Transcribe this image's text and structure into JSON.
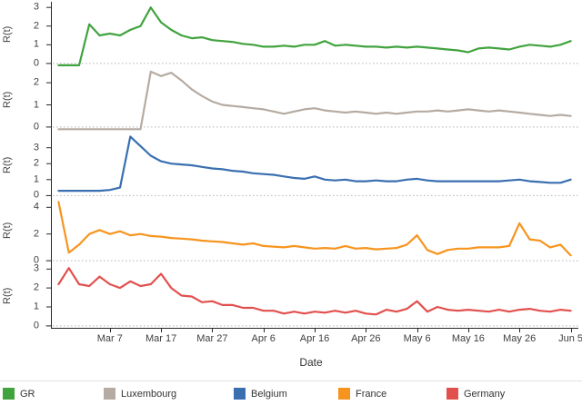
{
  "chart_data": {
    "type": "line",
    "title": "",
    "xlabel": "Date",
    "ylabel": "R(t)",
    "layout": "5 stacked panels sharing x axis, legend at bottom",
    "grid": "dotted horizontal line at y=0 in each panel",
    "x_description": "day index, 0 = Feb 26, step = 2 days, 100 = Jun 5",
    "x": [
      0,
      2,
      4,
      6,
      8,
      10,
      12,
      14,
      16,
      18,
      20,
      22,
      24,
      26,
      28,
      30,
      32,
      34,
      36,
      38,
      40,
      42,
      44,
      46,
      48,
      50,
      52,
      54,
      56,
      58,
      60,
      62,
      64,
      66,
      68,
      70,
      72,
      74,
      76,
      78,
      80,
      82,
      84,
      86,
      88,
      90,
      92,
      94,
      96,
      98,
      100
    ],
    "xticks": [
      {
        "pos": 10,
        "label": "Mar 7"
      },
      {
        "pos": 20,
        "label": "Mar 17"
      },
      {
        "pos": 30,
        "label": "Mar 27"
      },
      {
        "pos": 40,
        "label": "Apr 6"
      },
      {
        "pos": 50,
        "label": "Apr 16"
      },
      {
        "pos": 60,
        "label": "Apr 26"
      },
      {
        "pos": 70,
        "label": "May 6"
      },
      {
        "pos": 80,
        "label": "May 16"
      },
      {
        "pos": 90,
        "label": "May 26"
      },
      {
        "pos": 100,
        "label": "Jun 5"
      }
    ],
    "panels": [
      {
        "id": "gr",
        "name": "GR",
        "color": "#41A33E",
        "ylim": [
          -0.2,
          3.3
        ],
        "yticks": [
          0,
          1,
          2,
          3
        ],
        "values": [
          -0.1,
          -0.1,
          -0.1,
          2.1,
          1.5,
          1.6,
          1.5,
          1.8,
          2.0,
          3.0,
          2.2,
          1.8,
          1.5,
          1.35,
          1.4,
          1.25,
          1.2,
          1.15,
          1.05,
          1.0,
          0.9,
          0.9,
          0.95,
          0.9,
          1.0,
          1.0,
          1.2,
          0.95,
          1.0,
          0.95,
          0.9,
          0.9,
          0.85,
          0.9,
          0.85,
          0.9,
          0.85,
          0.8,
          0.75,
          0.7,
          0.6,
          0.8,
          0.85,
          0.8,
          0.75,
          0.9,
          1.0,
          0.95,
          0.9,
          1.0,
          1.2
        ]
      },
      {
        "id": "luxembourg",
        "name": "Luxembourg",
        "color": "#B5ABA2",
        "ylim": [
          -0.25,
          2.7
        ],
        "yticks": [
          0,
          1,
          2
        ],
        "values": [
          -0.1,
          -0.1,
          -0.1,
          -0.1,
          -0.1,
          -0.1,
          -0.1,
          -0.1,
          -0.1,
          2.5,
          2.3,
          2.45,
          2.1,
          1.7,
          1.4,
          1.15,
          1.0,
          0.95,
          0.9,
          0.85,
          0.8,
          0.7,
          0.6,
          0.7,
          0.8,
          0.85,
          0.75,
          0.7,
          0.65,
          0.7,
          0.65,
          0.6,
          0.65,
          0.6,
          0.65,
          0.7,
          0.7,
          0.75,
          0.7,
          0.75,
          0.8,
          0.75,
          0.7,
          0.75,
          0.7,
          0.65,
          0.6,
          0.55,
          0.5,
          0.55,
          0.5
        ]
      },
      {
        "id": "belgium",
        "name": "Belgium",
        "color": "#3A6FB0",
        "ylim": [
          -0.15,
          3.95
        ],
        "yticks": [
          0,
          1,
          2,
          3
        ],
        "values": [
          0.3,
          0.3,
          0.3,
          0.3,
          0.3,
          0.35,
          0.5,
          3.7,
          3.1,
          2.5,
          2.15,
          2.0,
          1.95,
          1.9,
          1.8,
          1.7,
          1.65,
          1.55,
          1.5,
          1.4,
          1.35,
          1.3,
          1.2,
          1.1,
          1.05,
          1.2,
          1.0,
          0.95,
          1.0,
          0.9,
          0.9,
          0.95,
          0.9,
          0.9,
          1.0,
          1.05,
          0.95,
          0.9,
          0.9,
          0.9,
          0.9,
          0.9,
          0.9,
          0.9,
          0.95,
          1.0,
          0.9,
          0.85,
          0.8,
          0.8,
          1.0
        ]
      },
      {
        "id": "france",
        "name": "France",
        "color": "#F7941E",
        "ylim": [
          -0.2,
          4.7
        ],
        "yticks": [
          0,
          2,
          4
        ],
        "values": [
          4.4,
          0.6,
          1.2,
          2.0,
          2.3,
          2.0,
          2.2,
          1.9,
          2.0,
          1.85,
          1.8,
          1.7,
          1.65,
          1.6,
          1.5,
          1.45,
          1.4,
          1.3,
          1.2,
          1.3,
          1.1,
          1.05,
          1.0,
          1.1,
          1.0,
          0.9,
          0.95,
          0.9,
          1.1,
          0.9,
          0.95,
          0.85,
          0.9,
          0.95,
          1.2,
          1.9,
          0.8,
          0.5,
          0.8,
          0.9,
          0.9,
          1.0,
          1.0,
          1.0,
          1.1,
          2.8,
          1.6,
          1.5,
          1.0,
          1.2,
          0.4
        ]
      },
      {
        "id": "germany",
        "name": "Germany",
        "color": "#E2504E",
        "ylim": [
          -0.15,
          3.3
        ],
        "yticks": [
          0,
          1,
          2,
          3
        ],
        "values": [
          2.2,
          3.05,
          2.2,
          2.1,
          2.6,
          2.2,
          2.0,
          2.35,
          2.1,
          2.2,
          2.75,
          2.0,
          1.6,
          1.55,
          1.25,
          1.3,
          1.1,
          1.1,
          0.95,
          0.95,
          0.8,
          0.8,
          0.65,
          0.75,
          0.65,
          0.75,
          0.7,
          0.8,
          0.7,
          0.8,
          0.65,
          0.6,
          0.85,
          0.75,
          0.9,
          1.3,
          0.75,
          1.0,
          0.85,
          0.8,
          0.85,
          0.8,
          0.75,
          0.85,
          0.75,
          0.85,
          0.9,
          0.8,
          0.75,
          0.85,
          0.8
        ]
      }
    ],
    "legend_position": "bottom",
    "legend": [
      "GR",
      "Luxembourg",
      "Belgium",
      "France",
      "Germany"
    ]
  }
}
